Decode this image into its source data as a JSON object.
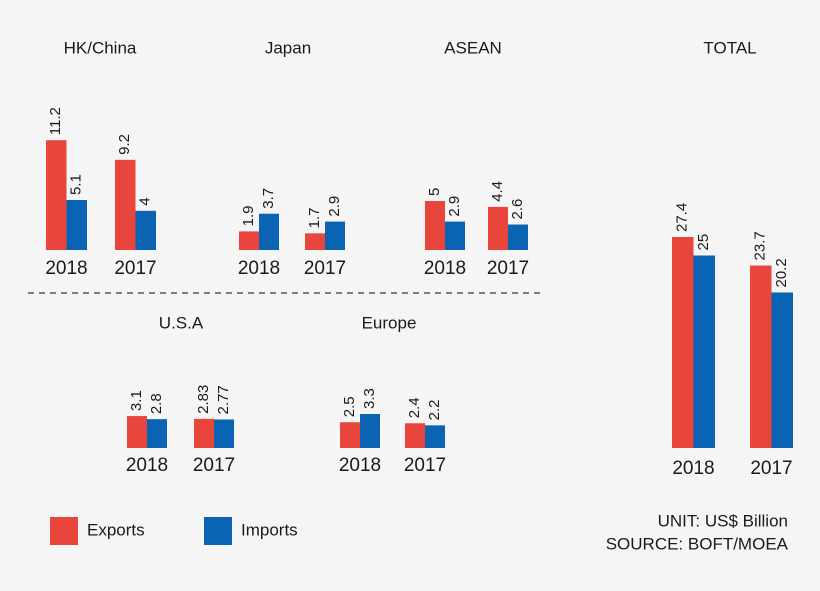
{
  "chart_data": [
    {
      "type": "bar",
      "title": "HK/China",
      "categories": [
        "2018",
        "2017"
      ],
      "series": [
        {
          "values": [
            11.2,
            9.2
          ]
        },
        {
          "values": [
            5.1,
            4
          ]
        }
      ]
    },
    {
      "type": "bar",
      "title": "Japan",
      "categories": [
        "2018",
        "2017"
      ],
      "series": [
        {
          "values": [
            1.9,
            1.7
          ]
        },
        {
          "values": [
            3.7,
            2.9
          ]
        }
      ]
    },
    {
      "type": "bar",
      "title": "ASEAN",
      "categories": [
        "2018",
        "2017"
      ],
      "series": [
        {
          "values": [
            5,
            4.4
          ]
        },
        {
          "values": [
            2.9,
            2.6
          ]
        }
      ]
    },
    {
      "type": "bar",
      "title": "U.S.A",
      "categories": [
        "2018",
        "2017"
      ],
      "series": [
        {
          "values": [
            3.1,
            2.83
          ]
        },
        {
          "values": [
            2.8,
            2.77
          ]
        }
      ]
    },
    {
      "type": "bar",
      "title": "Europe",
      "categories": [
        "2018",
        "2017"
      ],
      "series": [
        {
          "values": [
            2.5,
            2.4
          ]
        },
        {
          "values": [
            3.3,
            2.2
          ]
        }
      ]
    },
    {
      "type": "bar",
      "title": "TOTAL",
      "categories": [
        "2018",
        "2017"
      ],
      "series": [
        {
          "values": [
            27.4,
            23.7
          ]
        },
        {
          "values": [
            25,
            20.2
          ]
        }
      ]
    }
  ],
  "legend": [
    {
      "name": "Exports",
      "color": "#e8453c"
    },
    {
      "name": "Imports",
      "color": "#0b63b3"
    }
  ],
  "notes": [
    "UNIT: US$ Billion",
    "SOURCE: BOFT/MOEA"
  ]
}
